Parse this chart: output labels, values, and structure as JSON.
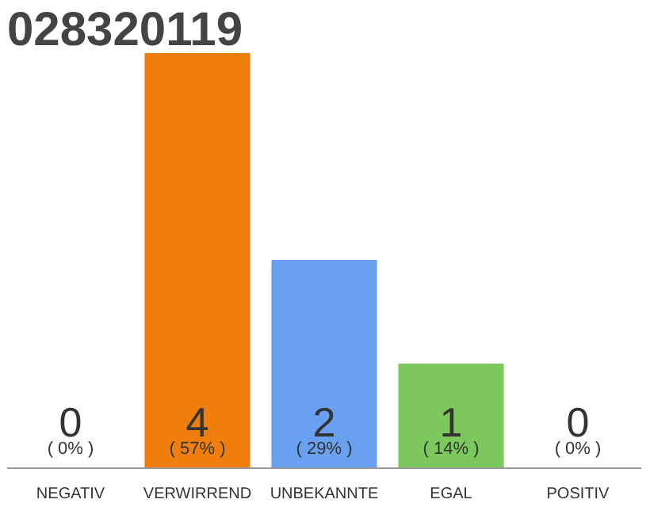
{
  "chart_data": {
    "type": "bar",
    "title": "028320119",
    "categories": [
      "NEGATIV",
      "VERWIRREND",
      "UNBEKANNTE",
      "EGAL",
      "POSITIV"
    ],
    "values": [
      0,
      4,
      2,
      1,
      0
    ],
    "colors": [
      "#cccccc",
      "#f07e0c",
      "#6aa0f0",
      "#7cc85c",
      "#cccccc"
    ],
    "data_labels": true,
    "annotations": [
      {
        "text": "( 0% )",
        "x": "NEGATIV",
        "y": 0
      },
      {
        "text": "( 57% )",
        "x": "VERWIRREND",
        "y": 0
      },
      {
        "text": "( 29% )",
        "x": "UNBEKANNTE",
        "y": 0
      },
      {
        "text": "( 14% )",
        "x": "EGAL",
        "y": 0
      },
      {
        "text": "( 0% )",
        "x": "POSITIV",
        "y": 0
      }
    ],
    "grid": false
  }
}
